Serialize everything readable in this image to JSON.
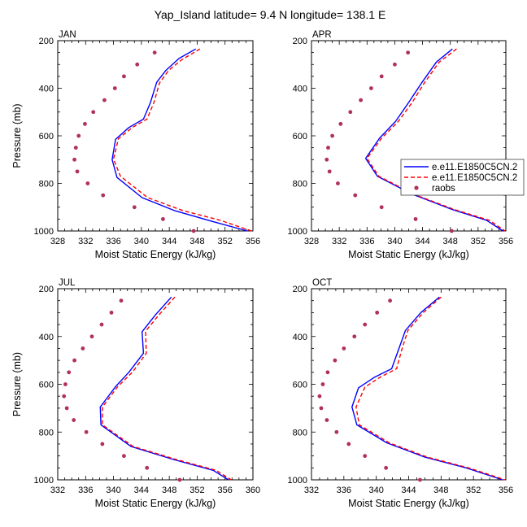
{
  "figure": {
    "title": "Yap_Island  latitude= 9.4 N longitude= 138.1 E"
  },
  "legend": {
    "entries": [
      {
        "label": "e.e11.E1850C5CN.2",
        "style": "solid",
        "color": "#0000ff"
      },
      {
        "label": "e.e11.E1850C5CN.2",
        "style": "dashed",
        "color": "#ff0000"
      },
      {
        "label": "raobs",
        "style": "dot",
        "color": "#b03060"
      }
    ]
  },
  "chart_data": [
    {
      "type": "line",
      "panel_label": "JAN",
      "xlabel": "Moist Static Energy (kJ/kg)",
      "ylabel": "Pressure (mb)",
      "xlim": [
        328,
        356
      ],
      "xticks": [
        328,
        332,
        336,
        340,
        344,
        348,
        352,
        356
      ],
      "ylim": [
        1000,
        200
      ],
      "yticks": [
        200,
        400,
        600,
        800,
        1000
      ],
      "series": [
        {
          "name": "e.e11.E1850C5CN.2",
          "color": "#0000ff",
          "style": "solid",
          "points": [
            [
              347.8,
              235
            ],
            [
              345.4,
              275
            ],
            [
              343.5,
              325
            ],
            [
              342.2,
              375
            ],
            [
              341.3,
              460
            ],
            [
              340.3,
              530
            ],
            [
              338.2,
              565
            ],
            [
              336.3,
              615
            ],
            [
              335.8,
              700
            ],
            [
              336.5,
              775
            ],
            [
              340.1,
              860
            ],
            [
              344.8,
              915
            ],
            [
              350.2,
              960
            ],
            [
              355.2,
              1000
            ]
          ]
        },
        {
          "name": "e.e11.E1850C5CN.2",
          "color": "#ff0000",
          "style": "dashed",
          "points": [
            [
              348.4,
              235
            ],
            [
              345.8,
              280
            ],
            [
              343.9,
              325
            ],
            [
              342.6,
              378
            ],
            [
              341.8,
              460
            ],
            [
              340.8,
              530
            ],
            [
              338.7,
              565
            ],
            [
              336.7,
              612
            ],
            [
              336.0,
              698
            ],
            [
              337.0,
              770
            ],
            [
              340.9,
              860
            ],
            [
              346.0,
              915
            ],
            [
              351.3,
              955
            ],
            [
              355.8,
              1000
            ]
          ]
        },
        {
          "name": "raobs",
          "color": "#b03060",
          "style": "dot",
          "points": [
            [
              341.9,
              250
            ],
            [
              339.4,
              300
            ],
            [
              337.5,
              350
            ],
            [
              336.2,
              400
            ],
            [
              334.7,
              450
            ],
            [
              333.1,
              500
            ],
            [
              331.9,
              550
            ],
            [
              331.0,
              600
            ],
            [
              330.6,
              650
            ],
            [
              330.4,
              700
            ],
            [
              330.8,
              750
            ],
            [
              332.3,
              800
            ],
            [
              334.5,
              850
            ],
            [
              339.0,
              900
            ],
            [
              343.1,
              950
            ],
            [
              347.5,
              1000
            ]
          ]
        }
      ]
    },
    {
      "type": "line",
      "panel_label": "APR",
      "xlabel": "Moist Static Energy (kJ/kg)",
      "ylabel": "",
      "xlim": [
        328,
        356
      ],
      "xticks": [
        328,
        332,
        336,
        340,
        344,
        348,
        352,
        356
      ],
      "ylim": [
        1000,
        200
      ],
      "yticks": [
        200,
        400,
        600,
        800,
        1000
      ],
      "series": [
        {
          "name": "e.e11.E1850C5CN.2",
          "color": "#0000ff",
          "style": "solid",
          "points": [
            [
              348.3,
              235
            ],
            [
              346.0,
              290
            ],
            [
              343.8,
              380
            ],
            [
              342.0,
              460
            ],
            [
              340.1,
              540
            ],
            [
              337.8,
              610
            ],
            [
              335.8,
              695
            ],
            [
              337.5,
              770
            ],
            [
              342.5,
              845
            ],
            [
              348.3,
              910
            ],
            [
              353.2,
              955
            ],
            [
              355.6,
              1000
            ]
          ]
        },
        {
          "name": "e.e11.E1850C5CN.2",
          "color": "#ff0000",
          "style": "dashed",
          "points": [
            [
              348.9,
              235
            ],
            [
              346.4,
              290
            ],
            [
              344.2,
              380
            ],
            [
              342.5,
              460
            ],
            [
              340.5,
              540
            ],
            [
              338.1,
              610
            ],
            [
              336.0,
              695
            ],
            [
              337.7,
              770
            ],
            [
              342.7,
              845
            ],
            [
              348.6,
              910
            ],
            [
              353.6,
              955
            ],
            [
              355.9,
              1000
            ]
          ]
        },
        {
          "name": "raobs",
          "color": "#b03060",
          "style": "dot",
          "points": [
            [
              341.9,
              250
            ],
            [
              340.0,
              300
            ],
            [
              338.1,
              350
            ],
            [
              336.6,
              400
            ],
            [
              335.1,
              450
            ],
            [
              333.6,
              500
            ],
            [
              332.2,
              550
            ],
            [
              331.0,
              600
            ],
            [
              330.4,
              650
            ],
            [
              330.2,
              700
            ],
            [
              330.6,
              750
            ],
            [
              331.8,
              800
            ],
            [
              334.3,
              850
            ],
            [
              338.1,
              900
            ],
            [
              343.0,
              950
            ],
            [
              348.2,
              1000
            ]
          ]
        }
      ]
    },
    {
      "type": "line",
      "panel_label": "JUL",
      "xlabel": "Moist Static Energy (kJ/kg)",
      "ylabel": "Pressure (mb)",
      "xlim": [
        332,
        360
      ],
      "xticks": [
        332,
        336,
        340,
        344,
        348,
        352,
        356,
        360
      ],
      "ylim": [
        1000,
        200
      ],
      "yticks": [
        200,
        400,
        600,
        800,
        1000
      ],
      "series": [
        {
          "name": "e.e11.E1850C5CN.2",
          "color": "#0000ff",
          "style": "solid",
          "points": [
            [
              348.3,
              235
            ],
            [
              346.0,
              310
            ],
            [
              344.1,
              380
            ],
            [
              344.3,
              470
            ],
            [
              342.2,
              550
            ],
            [
              340.3,
              610
            ],
            [
              338.1,
              695
            ],
            [
              338.2,
              770
            ],
            [
              342.5,
              860
            ],
            [
              348.6,
              915
            ],
            [
              354.3,
              960
            ],
            [
              356.5,
              1000
            ]
          ]
        },
        {
          "name": "e.e11.E1850C5CN.2",
          "color": "#ff0000",
          "style": "dashed",
          "points": [
            [
              348.8,
              235
            ],
            [
              346.5,
              310
            ],
            [
              344.6,
              378
            ],
            [
              344.7,
              470
            ],
            [
              342.7,
              550
            ],
            [
              340.6,
              610
            ],
            [
              338.4,
              695
            ],
            [
              338.4,
              770
            ],
            [
              342.8,
              860
            ],
            [
              349.0,
              915
            ],
            [
              354.7,
              960
            ],
            [
              356.9,
              1000
            ]
          ]
        },
        {
          "name": "raobs",
          "color": "#b03060",
          "style": "dot",
          "points": [
            [
              341.1,
              250
            ],
            [
              339.7,
              300
            ],
            [
              338.3,
              350
            ],
            [
              336.9,
              400
            ],
            [
              335.6,
              450
            ],
            [
              334.4,
              500
            ],
            [
              333.6,
              550
            ],
            [
              333.1,
              600
            ],
            [
              332.9,
              650
            ],
            [
              333.3,
              700
            ],
            [
              334.3,
              750
            ],
            [
              336.1,
              800
            ],
            [
              338.4,
              850
            ],
            [
              341.5,
              900
            ],
            [
              344.8,
              950
            ],
            [
              349.5,
              1000
            ]
          ]
        }
      ]
    },
    {
      "type": "line",
      "panel_label": "OCT",
      "xlabel": "Moist Static Energy (kJ/kg)",
      "ylabel": "",
      "xlim": [
        332,
        356
      ],
      "xticks": [
        332,
        336,
        340,
        344,
        348,
        352,
        356
      ],
      "ylim": [
        1000,
        200
      ],
      "yticks": [
        200,
        400,
        600,
        800,
        1000
      ],
      "series": [
        {
          "name": "e.e11.E1850C5CN.2",
          "color": "#0000ff",
          "style": "solid",
          "points": [
            [
              347.8,
              235
            ],
            [
              345.5,
              300
            ],
            [
              343.6,
              375
            ],
            [
              342.8,
              450
            ],
            [
              341.9,
              535
            ],
            [
              339.8,
              570
            ],
            [
              337.8,
              615
            ],
            [
              337.0,
              695
            ],
            [
              337.6,
              770
            ],
            [
              341.3,
              845
            ],
            [
              346.0,
              905
            ],
            [
              351.1,
              950
            ],
            [
              355.6,
              1000
            ]
          ]
        },
        {
          "name": "e.e11.E1850C5CN.2",
          "color": "#ff0000",
          "style": "dashed",
          "points": [
            [
              348.0,
              235
            ],
            [
              345.8,
              300
            ],
            [
              343.9,
              375
            ],
            [
              343.2,
              450
            ],
            [
              342.5,
              535
            ],
            [
              340.5,
              570
            ],
            [
              338.6,
              612
            ],
            [
              337.5,
              695
            ],
            [
              337.9,
              770
            ],
            [
              341.6,
              845
            ],
            [
              346.3,
              905
            ],
            [
              351.4,
              950
            ],
            [
              355.9,
              1000
            ]
          ]
        },
        {
          "name": "raobs",
          "color": "#b03060",
          "style": "dot",
          "points": [
            [
              341.7,
              250
            ],
            [
              340.1,
              300
            ],
            [
              338.6,
              350
            ],
            [
              337.3,
              400
            ],
            [
              336.0,
              450
            ],
            [
              334.9,
              500
            ],
            [
              334.0,
              550
            ],
            [
              333.4,
              600
            ],
            [
              333.0,
              650
            ],
            [
              333.2,
              700
            ],
            [
              333.9,
              750
            ],
            [
              335.1,
              800
            ],
            [
              336.6,
              850
            ],
            [
              338.6,
              900
            ],
            [
              341.2,
              950
            ],
            [
              345.4,
              1000
            ]
          ]
        }
      ]
    }
  ]
}
